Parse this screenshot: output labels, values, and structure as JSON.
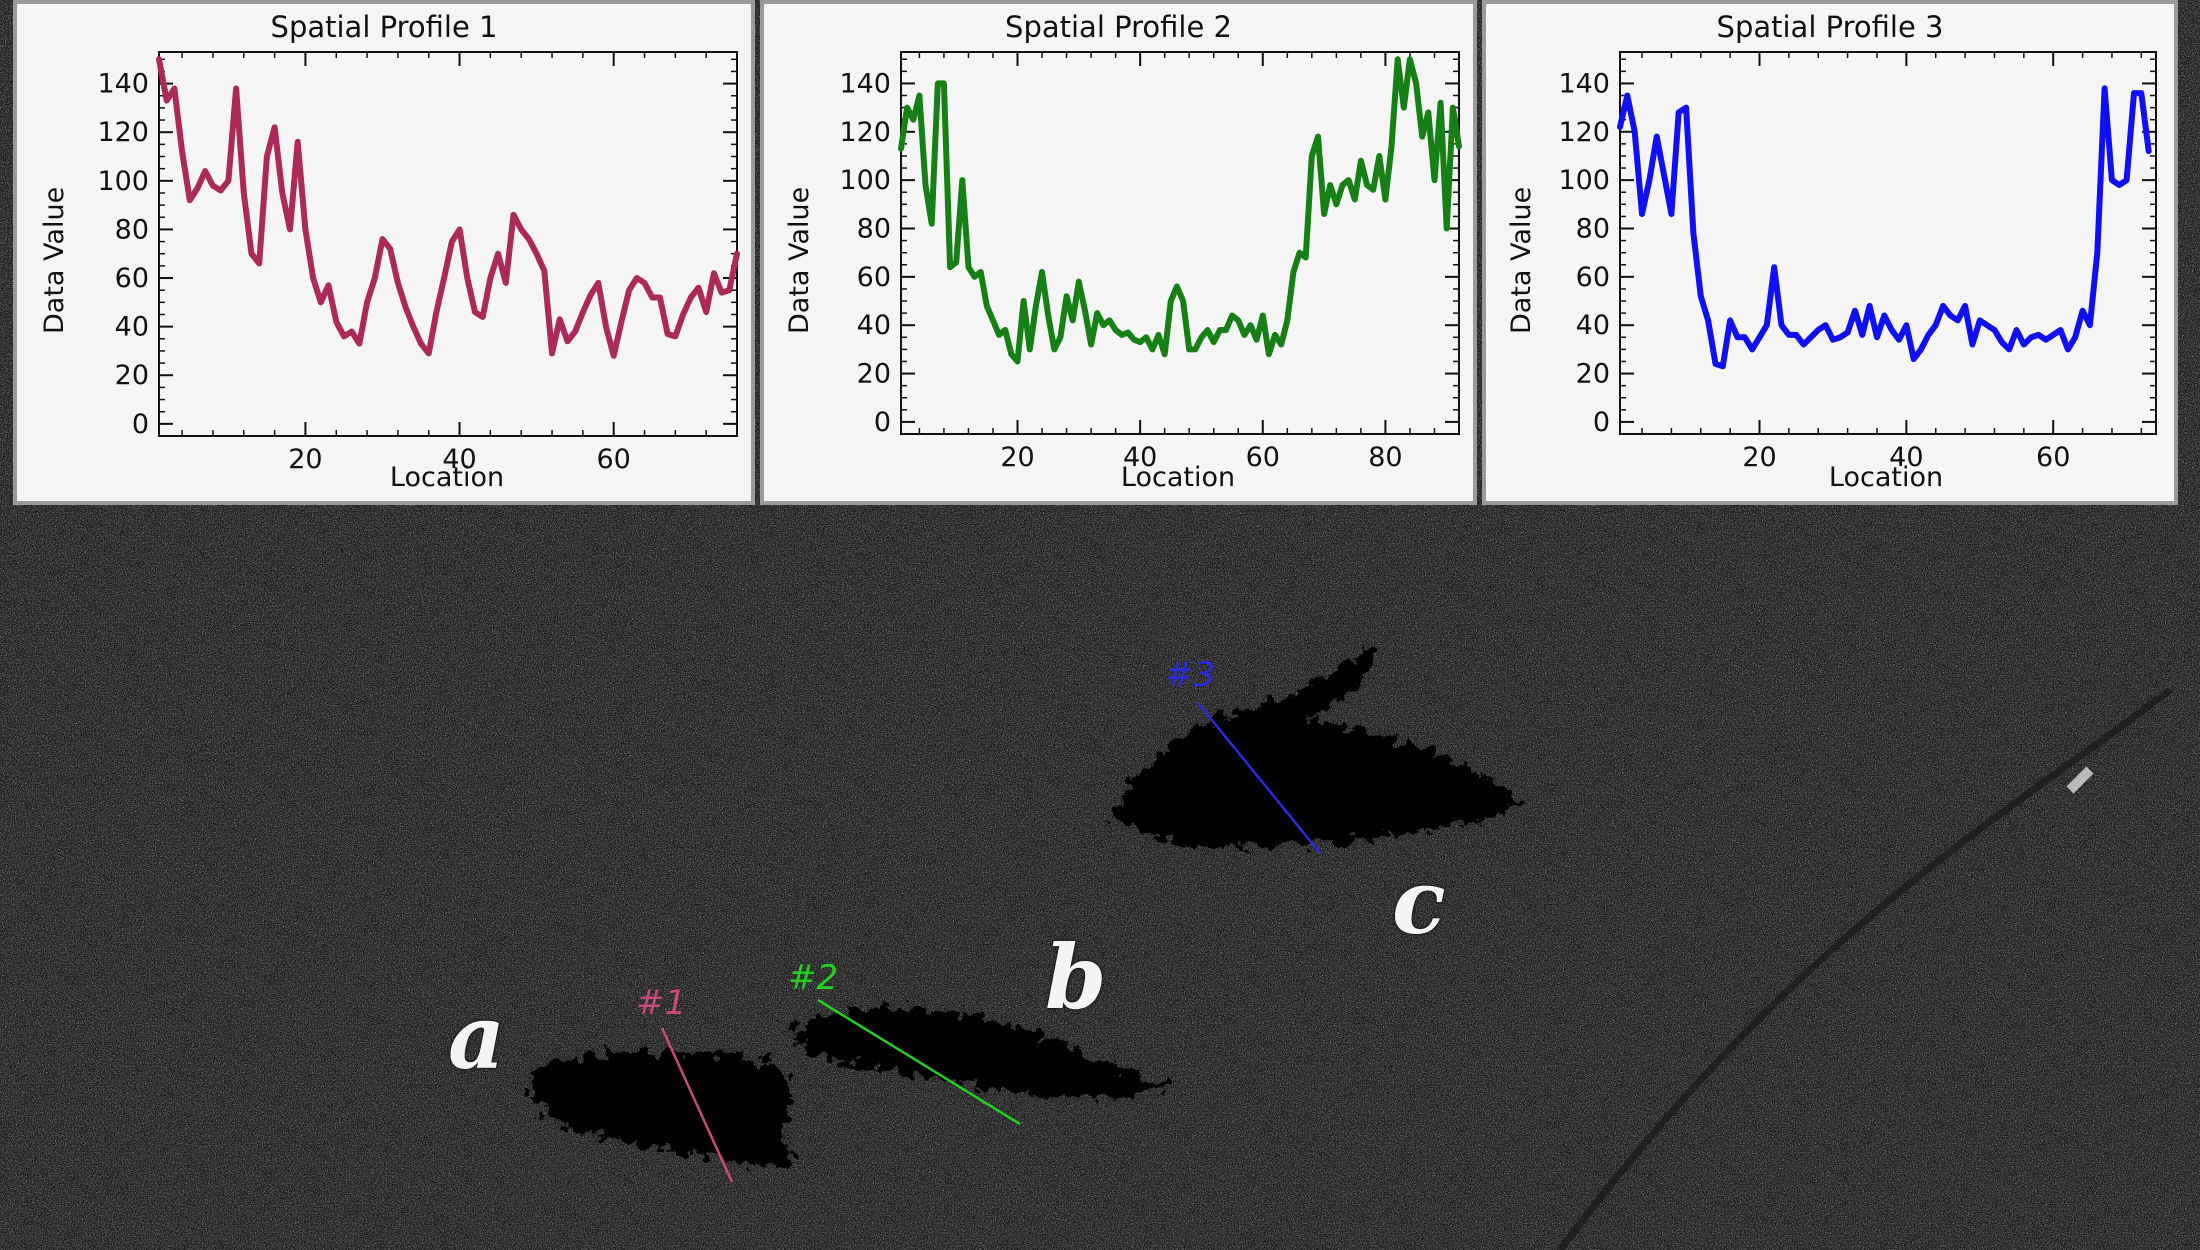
{
  "colors": {
    "profile1": "#ac2a58",
    "profile2": "#168016",
    "profile3": "#1010f5",
    "transect1": "#c84a7a",
    "transect2": "#22d022",
    "transect3": "#2a2ae0"
  },
  "panels": [
    {
      "title": "Spatial Profile 1",
      "xlabel": "Location",
      "ylabel": "Data Value"
    },
    {
      "title": "Spatial Profile 2",
      "xlabel": "Location",
      "ylabel": "Data Value"
    },
    {
      "title": "Spatial Profile 3",
      "xlabel": "Location",
      "ylabel": "Data Value"
    }
  ],
  "image_labels": {
    "a": "a",
    "b": "b",
    "c": "c"
  },
  "transect_labels": {
    "t1": "#1",
    "t2": "#2",
    "t3": "#3"
  },
  "chart_data": [
    {
      "type": "line",
      "title": "Spatial Profile 1",
      "xlabel": "Location",
      "ylabel": "Data Value",
      "xlim": [
        1,
        76
      ],
      "ylim": [
        -5,
        153
      ],
      "xticks": [
        20,
        40,
        60
      ],
      "yticks": [
        0,
        20,
        40,
        60,
        80,
        100,
        120,
        140
      ],
      "series": [
        {
          "values": [
            150,
            133,
            138,
            112,
            92,
            97,
            104,
            98,
            96,
            100,
            138,
            95,
            70,
            66,
            110,
            122,
            95,
            80,
            116,
            80,
            60,
            50,
            57,
            42,
            36,
            38,
            33,
            50,
            60,
            76,
            72,
            58,
            48,
            40,
            33,
            29,
            46,
            60,
            75,
            80,
            60,
            46,
            44,
            60,
            70,
            58,
            86,
            80,
            76,
            70,
            63,
            29,
            43,
            34,
            38,
            46,
            53,
            58,
            40,
            28,
            42,
            55,
            60,
            58,
            52,
            52,
            37,
            36,
            45,
            52,
            56,
            46,
            62,
            54,
            55,
            70
          ]
        }
      ]
    },
    {
      "type": "line",
      "title": "Spatial Profile 2",
      "xlabel": "Location",
      "ylabel": "Data Value",
      "xlim": [
        1,
        92
      ],
      "ylim": [
        -5,
        153
      ],
      "xticks": [
        20,
        40,
        60,
        80
      ],
      "yticks": [
        0,
        20,
        40,
        60,
        80,
        100,
        120,
        140
      ],
      "series": [
        {
          "values": [
            113,
            130,
            125,
            135,
            98,
            82,
            140,
            140,
            64,
            66,
            100,
            64,
            60,
            62,
            48,
            42,
            36,
            38,
            28,
            25,
            50,
            30,
            48,
            62,
            44,
            30,
            35,
            52,
            42,
            58,
            46,
            32,
            45,
            40,
            42,
            38,
            36,
            37,
            34,
            33,
            35,
            30,
            36,
            28,
            50,
            56,
            50,
            30,
            30,
            35,
            38,
            33,
            38,
            38,
            44,
            42,
            36,
            40,
            34,
            44,
            28,
            36,
            32,
            42,
            62,
            70,
            68,
            110,
            118,
            86,
            98,
            90,
            98,
            100,
            92,
            108,
            98,
            96,
            110,
            92,
            114,
            150,
            130,
            150,
            140,
            118,
            128,
            100,
            132,
            80,
            130,
            114
          ]
        }
      ]
    },
    {
      "type": "line",
      "title": "Spatial Profile 3",
      "xlabel": "Location",
      "ylabel": "Data Value",
      "xlim": [
        1,
        74
      ],
      "ylim": [
        -5,
        153
      ],
      "xticks": [
        20,
        40,
        60
      ],
      "yticks": [
        0,
        20,
        40,
        60,
        80,
        100,
        120,
        140
      ],
      "series": [
        {
          "values": [
            122,
            135,
            120,
            86,
            100,
            118,
            102,
            86,
            128,
            130,
            78,
            52,
            42,
            24,
            23,
            42,
            35,
            35,
            30,
            35,
            40,
            64,
            40,
            36,
            36,
            32,
            35,
            38,
            40,
            34,
            35,
            37,
            46,
            36,
            48,
            35,
            44,
            38,
            34,
            40,
            26,
            30,
            36,
            40,
            48,
            44,
            42,
            48,
            32,
            42,
            40,
            38,
            33,
            30,
            38,
            32,
            35,
            36,
            34,
            36,
            38,
            30,
            35,
            46,
            40,
            70,
            138,
            100,
            98,
            100,
            136,
            136,
            112
          ]
        }
      ]
    }
  ]
}
